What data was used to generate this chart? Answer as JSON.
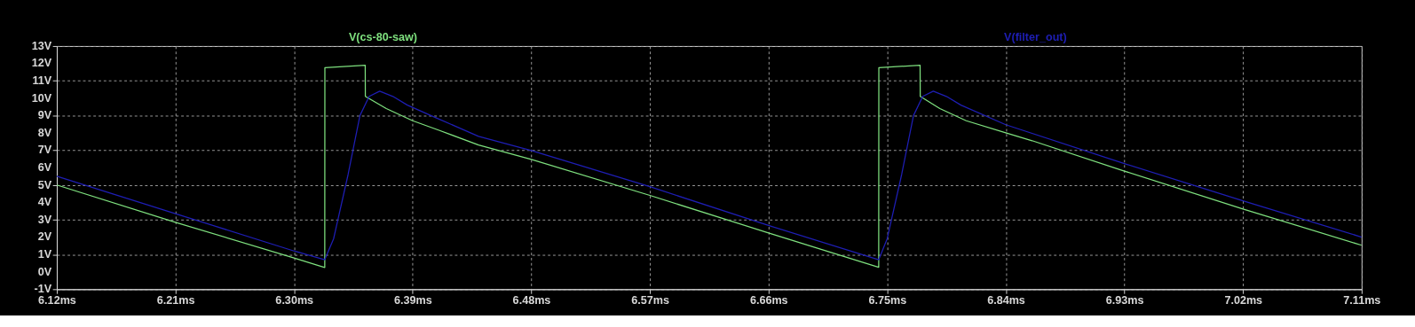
{
  "chart_data": {
    "type": "line",
    "series": [
      {
        "name": "V(cs-80-saw)",
        "color": "#7ee07e",
        "x": [
          6.12,
          6.21,
          6.3,
          6.3233,
          6.3234,
          6.354,
          6.3541,
          6.37,
          6.39,
          6.41,
          6.44,
          6.48,
          6.57,
          6.66,
          6.7436,
          6.7437,
          6.775,
          6.7751,
          6.79,
          6.81,
          6.84,
          6.86,
          6.93,
          7.02,
          7.11
        ],
        "values": [
          5.0,
          2.85,
          0.8,
          0.25,
          11.75,
          11.9,
          10.1,
          9.4,
          8.7,
          8.15,
          7.3,
          6.47,
          4.4,
          2.24,
          0.26,
          11.75,
          11.9,
          10.1,
          9.4,
          8.7,
          8.0,
          7.55,
          5.8,
          3.62,
          1.53
        ]
      },
      {
        "name": "V(filter_out)",
        "color": "#1e1eb4",
        "x": [
          6.12,
          6.21,
          6.3,
          6.3233,
          6.33,
          6.341,
          6.35,
          6.357,
          6.365,
          6.375,
          6.386,
          6.408,
          6.44,
          6.48,
          6.57,
          6.66,
          6.7436,
          6.75,
          6.761,
          6.77,
          6.777,
          6.785,
          6.795,
          6.806,
          6.84,
          6.93,
          7.02,
          7.11
        ],
        "values": [
          5.5,
          3.35,
          1.2,
          0.7,
          1.9,
          5.6,
          9.0,
          10.1,
          10.4,
          10.1,
          9.6,
          8.86,
          7.8,
          6.98,
          4.9,
          2.67,
          0.7,
          1.9,
          5.6,
          9.0,
          10.1,
          10.4,
          10.1,
          9.6,
          8.47,
          6.23,
          4.09,
          2.0
        ]
      }
    ],
    "xlim": [
      6.12,
      7.11
    ],
    "xticks": [
      {
        "value": 6.12,
        "label": "6.12ms"
      },
      {
        "value": 6.21,
        "label": "6.21ms"
      },
      {
        "value": 6.3,
        "label": "6.30ms"
      },
      {
        "value": 6.39,
        "label": "6.39ms"
      },
      {
        "value": 6.48,
        "label": "6.48ms"
      },
      {
        "value": 6.57,
        "label": "6.57ms"
      },
      {
        "value": 6.66,
        "label": "6.66ms"
      },
      {
        "value": 6.75,
        "label": "6.75ms"
      },
      {
        "value": 6.84,
        "label": "6.84ms"
      },
      {
        "value": 6.93,
        "label": "6.93ms"
      },
      {
        "value": 7.02,
        "label": "7.02ms"
      },
      {
        "value": 7.11,
        "label": "7.11ms"
      }
    ],
    "ylim": [
      -1,
      13
    ],
    "yticks": [
      {
        "value": -1,
        "label": "-1V"
      },
      {
        "value": 0,
        "label": "0V"
      },
      {
        "value": 1,
        "label": "1V"
      },
      {
        "value": 2,
        "label": "2V"
      },
      {
        "value": 3,
        "label": "3V"
      },
      {
        "value": 4,
        "label": "4V"
      },
      {
        "value": 5,
        "label": "5V"
      },
      {
        "value": 6,
        "label": "6V"
      },
      {
        "value": 7,
        "label": "7V"
      },
      {
        "value": 8,
        "label": "8V"
      },
      {
        "value": 9,
        "label": "9V"
      },
      {
        "value": 10,
        "label": "10V"
      },
      {
        "value": 11,
        "label": "11V"
      },
      {
        "value": 12,
        "label": "12V"
      },
      {
        "value": 13,
        "label": "13V"
      }
    ],
    "grid": true,
    "legend": "top",
    "line_style": "solid"
  }
}
